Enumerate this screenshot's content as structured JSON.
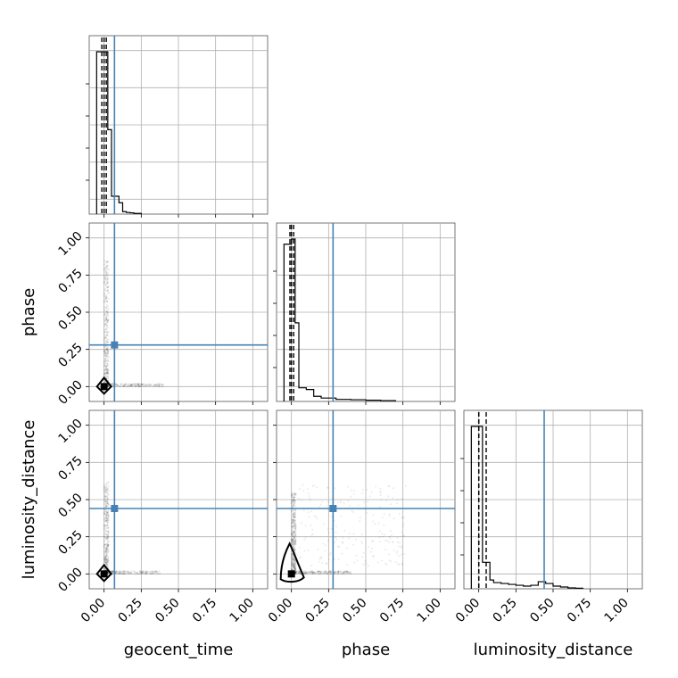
{
  "chart_data": {
    "type": "corner",
    "parameters": [
      "geocent_time",
      "phase",
      "luminosity_distance"
    ],
    "axis_range": [
      -0.1,
      1.1
    ],
    "tick_values": [
      0.0,
      0.25,
      0.5,
      0.75,
      1.0
    ],
    "tick_labels": [
      "0.00",
      "0.25",
      "0.50",
      "0.75",
      "1.00"
    ],
    "grid": true,
    "injection": {
      "geocent_time": 0.07,
      "phase": 0.28,
      "luminosity_distance": 0.44
    },
    "histograms": [
      {
        "parameter": "geocent_time",
        "bin_edges": [
          -0.05,
          0.0,
          0.025,
          0.05,
          0.075,
          0.1,
          0.125,
          0.15,
          0.175,
          0.2,
          0.25
        ],
        "counts": [
          1.0,
          1.0,
          0.52,
          0.11,
          0.11,
          0.07,
          0.015,
          0.01,
          0.008,
          0.004
        ],
        "quantiles": [
          -0.015,
          0.0,
          0.015
        ]
      },
      {
        "parameter": "phase",
        "bin_edges": [
          -0.05,
          0.0,
          0.025,
          0.05,
          0.1,
          0.15,
          0.2,
          0.3,
          0.4,
          0.5,
          0.6,
          0.7
        ],
        "counts": [
          0.92,
          0.95,
          0.46,
          0.08,
          0.07,
          0.03,
          0.02,
          0.012,
          0.01,
          0.007,
          0.005
        ],
        "quantiles": [
          -0.01,
          0.0,
          0.015
        ]
      },
      {
        "parameter": "luminosity_distance",
        "bin_edges": [
          -0.05,
          0.0,
          0.025,
          0.05,
          0.075,
          0.1,
          0.15,
          0.2,
          0.25,
          0.3,
          0.35,
          0.4,
          0.45,
          0.5,
          0.55,
          0.6,
          0.65,
          0.7
        ],
        "counts": [
          0.92,
          0.92,
          0.15,
          0.15,
          0.05,
          0.035,
          0.03,
          0.025,
          0.02,
          0.015,
          0.02,
          0.04,
          0.03,
          0.015,
          0.01,
          0.005,
          0.003
        ],
        "quantiles": [
          0.0,
          0.0,
          0.05
        ]
      }
    ],
    "scatter_panels": [
      {
        "x": "geocent_time",
        "y": "phase"
      },
      {
        "x": "geocent_time",
        "y": "luminosity_distance"
      },
      {
        "x": "phase",
        "y": "luminosity_distance"
      }
    ]
  }
}
